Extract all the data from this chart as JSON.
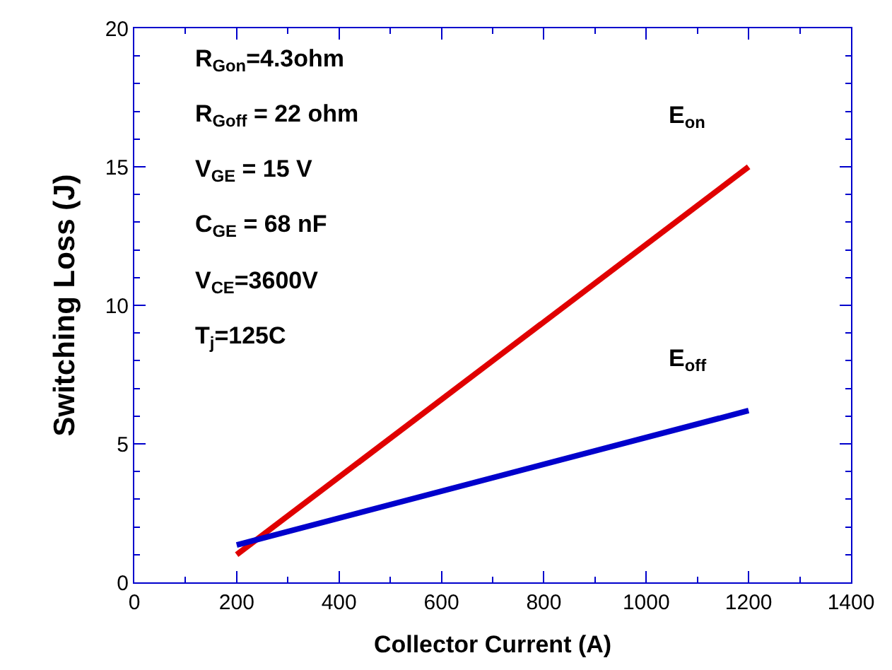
{
  "chart_data": {
    "type": "line",
    "xlabel": "Collector Current (A)",
    "ylabel": "Switching Loss (J)",
    "x": [
      200,
      1200
    ],
    "xlim": [
      0,
      1400
    ],
    "xticks": [
      0,
      200,
      400,
      600,
      800,
      1000,
      1200,
      1400
    ],
    "ylim": [
      0,
      20
    ],
    "yticks": [
      0,
      5,
      10,
      15,
      20
    ],
    "legend": false,
    "series": [
      {
        "name": "E$_{on}$",
        "color": "#e00000",
        "values": [
          1.0,
          15.0
        ]
      },
      {
        "name": "E$_{off}$",
        "color": "#0000cc",
        "values": [
          1.35,
          6.2
        ]
      }
    ],
    "annotations": [
      "R$_{Gon}$=4.3ohm",
      "R$_{Goff}$ = 22 ohm",
      "V$_{GE}$ = 15 V",
      "C$_{GE}$ = 68 nF",
      "V$_{CE}$=3600V",
      "T$_{j}$=125C"
    ]
  }
}
